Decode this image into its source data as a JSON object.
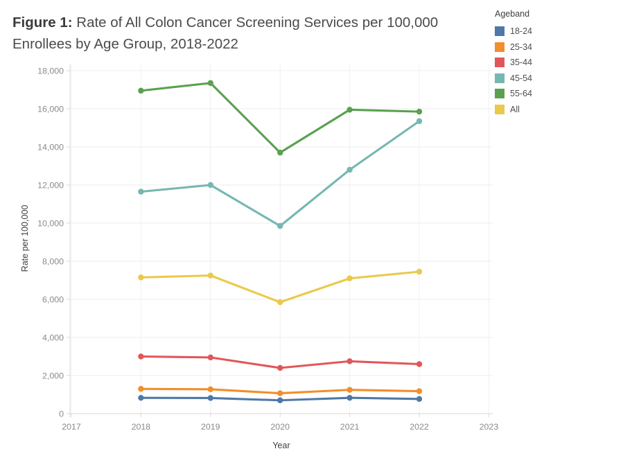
{
  "title": {
    "prefix": "Figure 1:",
    "text": " Rate of All Colon Cancer Screening Services per 100,000 Enrollees by Age Group, 2018-2022"
  },
  "chart_data": {
    "type": "line",
    "title": "Figure 1: Rate of All Colon Cancer Screening Services per 100,000 Enrollees by Age Group, 2018-2022",
    "xlabel": "Year",
    "ylabel": "Rate per 100,000",
    "legend_title": "Ageband",
    "legend_position": "top-right",
    "grid": true,
    "x": [
      2018,
      2019,
      2020,
      2021,
      2022
    ],
    "x_ticks": [
      2017,
      2018,
      2019,
      2020,
      2021,
      2022,
      2023
    ],
    "y_ticks": [
      0,
      2000,
      4000,
      6000,
      8000,
      10000,
      12000,
      14000,
      16000,
      18000
    ],
    "ylim": [
      0,
      18000
    ],
    "series": [
      {
        "name": "18-24",
        "color": "#4e79a7",
        "values": [
          830,
          820,
          700,
          830,
          770
        ]
      },
      {
        "name": "25-34",
        "color": "#f28e2b",
        "values": [
          1300,
          1280,
          1070,
          1250,
          1180
        ]
      },
      {
        "name": "35-44",
        "color": "#e15759",
        "values": [
          3000,
          2950,
          2400,
          2750,
          2600
        ]
      },
      {
        "name": "45-54",
        "color": "#76b7b2",
        "values": [
          11650,
          12000,
          9850,
          12800,
          15350
        ]
      },
      {
        "name": "55-64",
        "color": "#59a14f",
        "values": [
          16950,
          17350,
          13700,
          15950,
          15850
        ]
      },
      {
        "name": "All",
        "color": "#eac94b",
        "values": [
          7150,
          7250,
          5850,
          7100,
          7450
        ]
      }
    ]
  }
}
